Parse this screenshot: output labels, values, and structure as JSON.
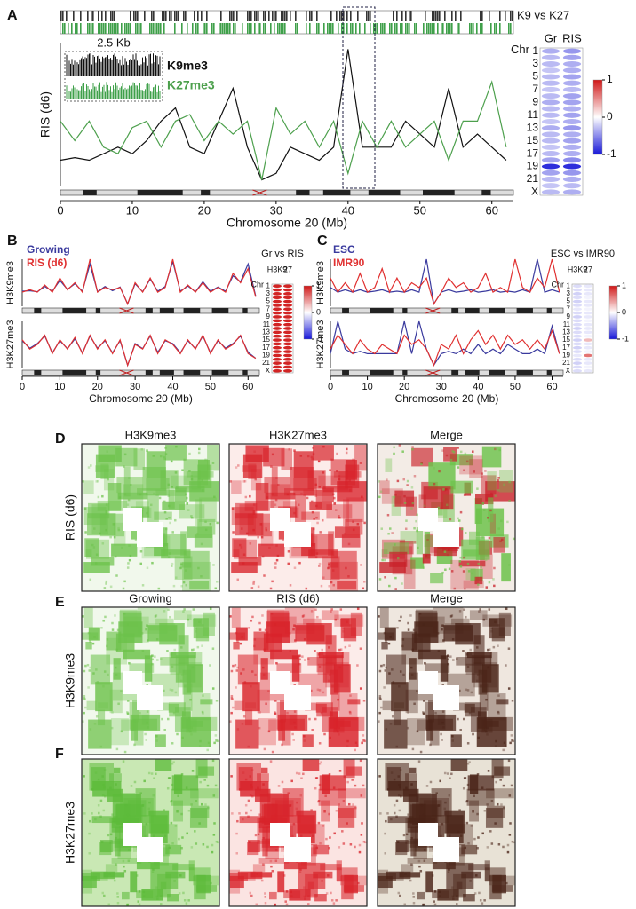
{
  "chart_data": [
    {
      "type": "line",
      "panel": "A",
      "top_label": "K9 vs K27",
      "inset_label": "2.5 Kb",
      "xlabel": "Chromosome 20 (Mb)",
      "ylabel": "RIS (d6)",
      "xlim": [
        0,
        63
      ],
      "ylim": [
        0,
        11
      ],
      "xticks": [
        0,
        10,
        20,
        30,
        40,
        50,
        60
      ],
      "x": [
        0,
        2,
        4,
        6,
        8,
        10,
        12,
        14,
        16,
        18,
        20,
        22,
        24,
        26,
        28,
        30,
        32,
        34,
        36,
        38,
        40,
        42,
        44,
        46,
        48,
        50,
        52,
        54,
        56,
        58,
        60,
        62
      ],
      "series": [
        {
          "name": "K9me3",
          "color": "#111111",
          "values": [
            2,
            2.2,
            2,
            2.5,
            3,
            2.5,
            3.5,
            5,
            6,
            3,
            2.5,
            5,
            7.5,
            3,
            0.5,
            1,
            3,
            2.5,
            2,
            3,
            10.5,
            3,
            3,
            3,
            5,
            4,
            3,
            7.5,
            3,
            4,
            3,
            2
          ]
        },
        {
          "name": "K27me3",
          "color": "#4da04d",
          "values": [
            5,
            3.5,
            5,
            3,
            2.5,
            4.5,
            5,
            3,
            5,
            5.5,
            3.5,
            5,
            4,
            5,
            0.5,
            6,
            4,
            5,
            3,
            5,
            1,
            5,
            3,
            5,
            3,
            4,
            5,
            2,
            5,
            5,
            8,
            3
          ]
        }
      ]
    },
    {
      "type": "heatmap",
      "row_title": "Chr",
      "columns": [
        "Gr",
        "RIS"
      ],
      "rows": [
        "1",
        null,
        "3",
        null,
        "5",
        null,
        "7",
        null,
        "9",
        null,
        "11",
        null,
        "13",
        null,
        "15",
        null,
        "17",
        null,
        "19",
        null,
        "21",
        null,
        "X"
      ],
      "values": [
        [
          -0.35,
          -0.45
        ],
        [
          -0.3,
          -0.4
        ],
        [
          -0.3,
          -0.35
        ],
        [
          -0.25,
          -0.35
        ],
        [
          -0.3,
          -0.4
        ],
        [
          -0.3,
          -0.35
        ],
        [
          -0.25,
          -0.3
        ],
        [
          -0.3,
          -0.4
        ],
        [
          -0.35,
          -0.4
        ],
        [
          -0.3,
          -0.35
        ],
        [
          -0.3,
          -0.4
        ],
        [
          -0.25,
          -0.35
        ],
        [
          -0.35,
          -0.45
        ],
        [
          -0.3,
          -0.35
        ],
        [
          -0.3,
          -0.4
        ],
        [
          -0.25,
          -0.35
        ],
        [
          -0.3,
          -0.35
        ],
        [
          -0.4,
          -0.5
        ],
        [
          -0.9,
          -0.9
        ],
        [
          -0.4,
          -0.45
        ],
        [
          -0.3,
          -0.35
        ],
        [
          -0.25,
          -0.3
        ],
        [
          -0.3,
          -0.35
        ]
      ],
      "zlim": [
        -1,
        1
      ],
      "zticks": [
        1,
        0,
        -1
      ]
    },
    {
      "type": "line",
      "panel": "B",
      "ylabel": "H3K9me3",
      "xlim": [
        0,
        63
      ],
      "ylim": [
        0,
        10
      ],
      "x": [
        0,
        2,
        4,
        6,
        8,
        10,
        12,
        14,
        16,
        18,
        20,
        22,
        24,
        26,
        28,
        30,
        32,
        34,
        36,
        38,
        40,
        42,
        44,
        46,
        48,
        50,
        52,
        54,
        56,
        58,
        60,
        62
      ],
      "series": [
        {
          "name": "Growing",
          "color": "#3a3a9e",
          "values": [
            3.2,
            3.3,
            3.1,
            4.2,
            3.2,
            5.5,
            3.6,
            4.8,
            3.2,
            9,
            3.1,
            4.2,
            3.3,
            4.1,
            0.5,
            4.8,
            3.1,
            5.8,
            3.2,
            4.2,
            9.5,
            3.2,
            4.3,
            3.1,
            5.2,
            3.2,
            4.1,
            3.2,
            6.5,
            5.2,
            9,
            2.2
          ]
        },
        {
          "name": "RIS (d6)",
          "color": "#e03030",
          "values": [
            3,
            3.5,
            3,
            4.5,
            3,
            6,
            3.5,
            5,
            3,
            10,
            3,
            4,
            3.5,
            4,
            0.5,
            5,
            3,
            6,
            3,
            4,
            10,
            3,
            4.5,
            3,
            5,
            3,
            4,
            3,
            7,
            5,
            8,
            2
          ]
        }
      ]
    },
    {
      "type": "line",
      "ylabel": "H3K27me3",
      "xlabel": "Chromosome 20 (Mb)",
      "xlim": [
        0,
        63
      ],
      "ylim": [
        0,
        10
      ],
      "xticks": [
        0,
        10,
        20,
        30,
        40,
        50,
        60
      ],
      "x": [
        0,
        2,
        4,
        6,
        8,
        10,
        12,
        14,
        16,
        18,
        20,
        22,
        24,
        26,
        28,
        30,
        32,
        34,
        36,
        38,
        40,
        42,
        44,
        46,
        48,
        50,
        52,
        54,
        56,
        58,
        60,
        62
      ],
      "series": [
        {
          "color": "#3a3a9e",
          "values": [
            5.8,
            4.2,
            5.2,
            6.8,
            3.2,
            5.8,
            4.1,
            6.2,
            3.2,
            6.8,
            4.2,
            5.8,
            3.2,
            5.8,
            0.5,
            5.2,
            4.1,
            6.8,
            3.3,
            5.8,
            5.2,
            3.2,
            5.8,
            4.1,
            6.8,
            3.2,
            5.8,
            4.2,
            5.2,
            6.8,
            3.3,
            2
          ]
        },
        {
          "color": "#e03030",
          "values": [
            6,
            4,
            5,
            7,
            3,
            6,
            4,
            6.5,
            3,
            7,
            4,
            6,
            3,
            6,
            0.5,
            5,
            4,
            7,
            3,
            6,
            5,
            3,
            6,
            4,
            7,
            3,
            6,
            4,
            5,
            7,
            3,
            2
          ]
        }
      ]
    },
    {
      "type": "heatmap",
      "title": "Gr vs RIS",
      "row_title": "Chr",
      "columns": [
        "H3K9",
        "27"
      ],
      "rows": [
        "1",
        null,
        "3",
        null,
        "5",
        null,
        "7",
        null,
        "9",
        null,
        "11",
        null,
        "13",
        null,
        "15",
        null,
        "17",
        null,
        "19",
        null,
        "21",
        null,
        "X"
      ],
      "values": [
        [
          0.95,
          0.95
        ],
        [
          0.95,
          0.95
        ],
        [
          0.95,
          0.95
        ],
        [
          0.95,
          0.95
        ],
        [
          0.95,
          0.95
        ],
        [
          0.95,
          0.95
        ],
        [
          0.95,
          0.95
        ],
        [
          0.95,
          0.95
        ],
        [
          0.95,
          0.95
        ],
        [
          0.95,
          0.95
        ],
        [
          0.95,
          0.95
        ],
        [
          0.95,
          0.95
        ],
        [
          0.95,
          0.95
        ],
        [
          0.95,
          0.95
        ],
        [
          0.95,
          0.95
        ],
        [
          0.95,
          0.95
        ],
        [
          0.95,
          0.95
        ],
        [
          0.95,
          0.95
        ],
        [
          0.95,
          0.95
        ],
        [
          0.95,
          0.95
        ],
        [
          0.95,
          0.95
        ],
        [
          0.95,
          0.95
        ],
        [
          0.95,
          0.95
        ]
      ],
      "zlim": [
        -1,
        1
      ],
      "zticks": [
        1,
        0,
        -1
      ]
    },
    {
      "type": "line",
      "panel": "C",
      "ylabel": "H3K9me3",
      "xlim": [
        0,
        63
      ],
      "ylim": [
        0,
        10
      ],
      "x": [
        0,
        2,
        4,
        6,
        8,
        10,
        12,
        14,
        16,
        18,
        20,
        22,
        24,
        26,
        28,
        30,
        32,
        34,
        36,
        38,
        40,
        42,
        44,
        46,
        48,
        50,
        52,
        54,
        56,
        58,
        60,
        62
      ],
      "series": [
        {
          "name": "ESC",
          "color": "#3a3a9e",
          "values": [
            4,
            3,
            3.5,
            3,
            3.5,
            3,
            3.2,
            3.5,
            3,
            3.2,
            3,
            3.5,
            3,
            10,
            0.5,
            3,
            3.5,
            3,
            3.2,
            3.5,
            3,
            3.2,
            3.5,
            3,
            3.2,
            3,
            3.5,
            3,
            10,
            3,
            3.5,
            3
          ]
        },
        {
          "name": "IMR90",
          "color": "#e03030",
          "values": [
            6,
            3,
            5,
            3,
            7,
            3,
            4,
            8,
            3,
            6,
            3,
            5,
            4,
            6,
            0.5,
            3,
            6,
            4,
            5,
            3,
            4,
            7,
            3,
            4,
            3,
            10,
            4,
            3,
            6,
            4,
            10,
            3
          ]
        }
      ]
    },
    {
      "type": "line",
      "ylabel": "H3K27me3",
      "xlabel": "Chromosome 20 (Mb)",
      "xlim": [
        0,
        63
      ],
      "ylim": [
        0,
        10
      ],
      "xticks": [
        0,
        10,
        20,
        30,
        40,
        50,
        60
      ],
      "x": [
        0,
        2,
        4,
        6,
        8,
        10,
        12,
        14,
        16,
        18,
        20,
        22,
        24,
        26,
        28,
        30,
        32,
        34,
        36,
        38,
        40,
        42,
        44,
        46,
        48,
        50,
        52,
        54,
        56,
        58,
        60,
        62
      ],
      "series": [
        {
          "color": "#3a3a9e",
          "values": [
            3,
            10,
            4,
            3,
            3.5,
            3,
            3,
            3,
            3,
            3,
            10,
            3,
            10,
            4,
            0.5,
            3,
            3.5,
            3,
            4,
            3,
            5,
            3,
            4,
            3,
            5,
            4,
            3,
            3,
            4,
            3,
            9,
            3
          ]
        },
        {
          "color": "#e03030",
          "values": [
            4,
            7,
            5,
            3,
            6,
            4,
            3,
            5,
            4,
            3,
            7,
            5,
            6,
            4,
            0.5,
            5,
            4,
            7,
            3,
            6,
            8,
            5,
            7,
            4,
            7,
            5,
            6,
            4,
            6,
            4,
            8,
            3
          ]
        }
      ]
    },
    {
      "type": "heatmap",
      "title": "ESC vs IMR90",
      "row_title": "Chr",
      "columns": [
        "H3K9",
        "27"
      ],
      "rows": [
        "1",
        null,
        "3",
        null,
        "5",
        null,
        "7",
        null,
        "9",
        null,
        "11",
        null,
        "13",
        null,
        "15",
        null,
        "17",
        null,
        "19",
        null,
        "21",
        null,
        "X"
      ],
      "values": [
        [
          -0.15,
          -0.1
        ],
        [
          -0.15,
          -0.1
        ],
        [
          -0.2,
          -0.1
        ],
        [
          -0.15,
          -0.05
        ],
        [
          -0.2,
          -0.1
        ],
        [
          -0.15,
          -0.1
        ],
        [
          -0.1,
          -0.05
        ],
        [
          -0.15,
          -0.1
        ],
        [
          -0.2,
          -0.1
        ],
        [
          -0.15,
          -0.05
        ],
        [
          -0.15,
          -0.1
        ],
        [
          -0.2,
          -0.1
        ],
        [
          -0.15,
          -0.1
        ],
        [
          -0.15,
          -0.05
        ],
        [
          -0.2,
          0.3
        ],
        [
          -0.15,
          -0.1
        ],
        [
          -0.2,
          -0.1
        ],
        [
          -0.15,
          -0.05
        ],
        [
          -0.1,
          0.6
        ],
        [
          -0.15,
          -0.1
        ],
        [
          -0.2,
          -0.1
        ],
        [
          -0.15,
          -0.05
        ],
        [
          -0.15,
          -0.1
        ]
      ],
      "zlim": [
        -1,
        1
      ],
      "zticks": [
        1,
        0,
        -1
      ]
    }
  ],
  "image_panels": [
    {
      "panel": "D",
      "row_label": "RIS (d6)",
      "columns": [
        "H3K9me3",
        "H3K27me3",
        "Merge"
      ]
    },
    {
      "panel": "E",
      "row_label": "H3K9me3",
      "columns": [
        "Growing",
        "RIS (d6)",
        "Merge"
      ]
    },
    {
      "panel": "F",
      "row_label": "H3K27me3"
    }
  ]
}
